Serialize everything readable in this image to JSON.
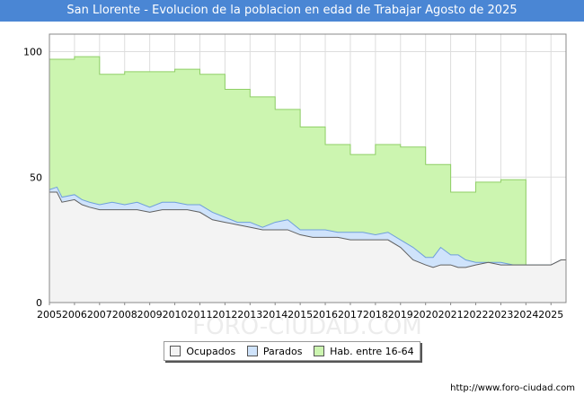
{
  "title": "San Llorente - Evolucion de la poblacion en edad de Trabajar Agosto de 2025",
  "footer_url": "http://www.foro-ciudad.com",
  "watermark": "FORO-CIUDAD.COM",
  "colors": {
    "title_bg": "#4a86d4",
    "ocupados_fill": "#f3f3f3",
    "ocupados_line": "#606060",
    "parados_fill": "#cfe3fb",
    "parados_line": "#6f9fdc",
    "hab_fill": "#ccf5b0",
    "hab_line": "#8fcf66"
  },
  "chart_data": {
    "type": "area",
    "title": "San Llorente - Evolucion de la poblacion en edad de Trabajar Agosto de 2025",
    "xlim": [
      2005,
      2025.6
    ],
    "ylim": [
      0,
      107
    ],
    "x_ticks": [
      2005,
      2006,
      2007,
      2008,
      2009,
      2010,
      2011,
      2012,
      2013,
      2014,
      2015,
      2016,
      2017,
      2018,
      2019,
      2020,
      2021,
      2022,
      2023,
      2024,
      2025
    ],
    "y_ticks": [
      0,
      50,
      100
    ],
    "grid": true,
    "legend_position": "bottom-center",
    "series": [
      {
        "name": "Hab. entre 16-64",
        "type": "step",
        "x": [
          2005,
          2006,
          2007,
          2008,
          2009,
          2010,
          2011,
          2012,
          2013,
          2014,
          2015,
          2016,
          2017,
          2018,
          2019,
          2020,
          2021,
          2022,
          2023,
          2024
        ],
        "values": [
          97,
          98,
          91,
          92,
          92,
          93,
          91,
          85,
          82,
          77,
          70,
          63,
          59,
          63,
          62,
          55,
          44,
          48,
          49,
          15
        ]
      },
      {
        "name": "Parados",
        "type": "line",
        "x": [
          2005,
          2005.3,
          2005.5,
          2006,
          2006.3,
          2006.6,
          2007,
          2007.5,
          2008,
          2008.5,
          2009,
          2009.5,
          2010,
          2010.5,
          2011,
          2011.5,
          2012,
          2012.5,
          2013,
          2013.5,
          2014,
          2014.5,
          2015,
          2015.5,
          2016,
          2016.5,
          2017,
          2017.5,
          2018,
          2018.5,
          2019,
          2019.5,
          2020,
          2020.3,
          2020.6,
          2021,
          2021.3,
          2021.6,
          2022,
          2022.5,
          2023,
          2023.5,
          2024,
          2024.5,
          2025,
          2025.4,
          2025.6
        ],
        "values": [
          45,
          46,
          42,
          43,
          41,
          40,
          39,
          40,
          39,
          40,
          38,
          40,
          40,
          39,
          39,
          36,
          34,
          32,
          32,
          30,
          32,
          33,
          29,
          29,
          29,
          28,
          28,
          28,
          27,
          28,
          25,
          22,
          18,
          18,
          22,
          19,
          19,
          17,
          16,
          16,
          16,
          15,
          15,
          15,
          15,
          17,
          17
        ]
      },
      {
        "name": "Ocupados",
        "type": "line",
        "x": [
          2005,
          2005.3,
          2005.5,
          2006,
          2006.3,
          2006.6,
          2007,
          2007.5,
          2008,
          2008.5,
          2009,
          2009.5,
          2010,
          2010.5,
          2011,
          2011.5,
          2012,
          2012.5,
          2013,
          2013.5,
          2014,
          2014.5,
          2015,
          2015.5,
          2016,
          2016.5,
          2017,
          2017.5,
          2018,
          2018.5,
          2019,
          2019.5,
          2020,
          2020.3,
          2020.6,
          2021,
          2021.3,
          2021.6,
          2022,
          2022.5,
          2023,
          2023.5,
          2024,
          2024.5,
          2025,
          2025.4,
          2025.6
        ],
        "values": [
          44,
          44,
          40,
          41,
          39,
          38,
          37,
          37,
          37,
          37,
          36,
          37,
          37,
          37,
          36,
          33,
          32,
          31,
          30,
          29,
          29,
          29,
          27,
          26,
          26,
          26,
          25,
          25,
          25,
          25,
          22,
          17,
          15,
          14,
          15,
          15,
          14,
          14,
          15,
          16,
          15,
          15,
          15,
          15,
          15,
          17,
          17
        ]
      }
    ]
  }
}
